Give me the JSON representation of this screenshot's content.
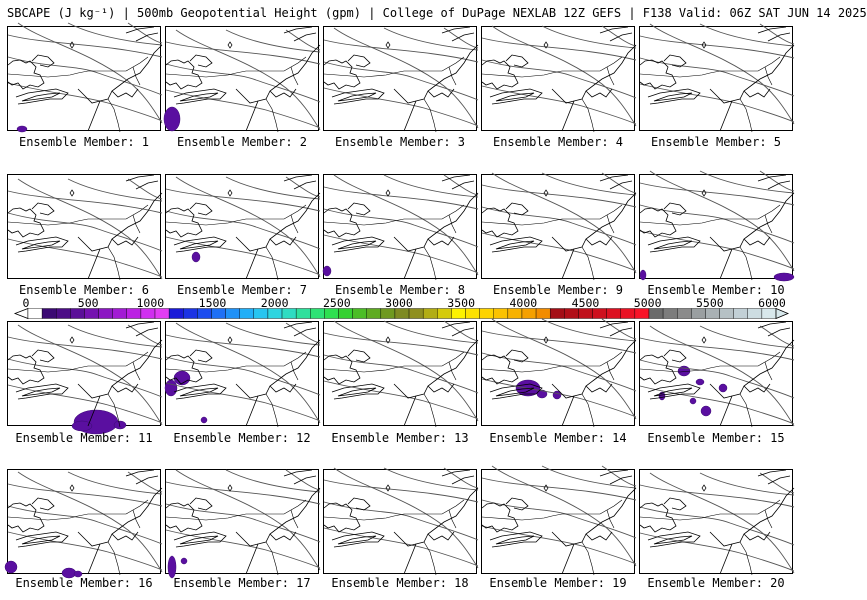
{
  "header": {
    "title": "SBCAPE (J kg⁻¹) | 500mb Geopotential Height (gpm) | College of DuPage NEXLAB 12Z GEFS | F138 Valid: 06Z SAT JUN 14 2025"
  },
  "members": [
    {
      "label": "Ensemble Member: 1",
      "blobs": [
        [
          14,
          102,
          5,
          3
        ]
      ]
    },
    {
      "label": "Ensemble Member: 2",
      "blobs": [
        [
          6,
          92,
          8,
          12
        ]
      ]
    },
    {
      "label": "Ensemble Member: 3",
      "blobs": []
    },
    {
      "label": "Ensemble Member: 4",
      "blobs": []
    },
    {
      "label": "Ensemble Member: 5",
      "blobs": []
    },
    {
      "label": "Ensemble Member: 6",
      "blobs": []
    },
    {
      "label": "Ensemble Member: 7",
      "blobs": [
        [
          30,
          82,
          4,
          5
        ]
      ]
    },
    {
      "label": "Ensemble Member: 8",
      "blobs": [
        [
          3,
          96,
          4,
          5
        ]
      ]
    },
    {
      "label": "Ensemble Member: 9",
      "blobs": []
    },
    {
      "label": "Ensemble Member: 10",
      "blobs": [
        [
          3,
          100,
          3,
          5
        ],
        [
          144,
          102,
          10,
          4
        ]
      ]
    },
    {
      "label": "Ensemble Member: 11",
      "blobs": [
        [
          88,
          100,
          22,
          12
        ],
        [
          74,
          104,
          10,
          5
        ],
        [
          112,
          103,
          6,
          4
        ]
      ]
    },
    {
      "label": "Ensemble Member: 12",
      "blobs": [
        [
          16,
          56,
          8,
          7
        ],
        [
          5,
          66,
          6,
          8
        ],
        [
          38,
          98,
          3,
          3
        ]
      ]
    },
    {
      "label": "Ensemble Member: 13",
      "blobs": []
    },
    {
      "label": "Ensemble Member: 14",
      "blobs": [
        [
          46,
          66,
          12,
          8
        ],
        [
          60,
          72,
          5,
          4
        ],
        [
          75,
          73,
          4,
          4
        ]
      ]
    },
    {
      "label": "Ensemble Member: 15",
      "blobs": [
        [
          44,
          49,
          6,
          5
        ],
        [
          22,
          74,
          3,
          4
        ],
        [
          60,
          60,
          4,
          3
        ],
        [
          83,
          66,
          4,
          4
        ],
        [
          66,
          89,
          5,
          5
        ],
        [
          53,
          79,
          3,
          3
        ]
      ]
    },
    {
      "label": "Ensemble Member: 16",
      "blobs": [
        [
          3,
          97,
          6,
          6
        ],
        [
          61,
          103,
          7,
          5
        ],
        [
          70,
          104,
          4,
          3
        ]
      ]
    },
    {
      "label": "Ensemble Member: 17",
      "blobs": [
        [
          6,
          97,
          4,
          11
        ],
        [
          18,
          91,
          3,
          3
        ]
      ]
    },
    {
      "label": "Ensemble Member: 18",
      "blobs": []
    },
    {
      "label": "Ensemble Member: 19",
      "blobs": []
    },
    {
      "label": "Ensemble Member: 20",
      "blobs": []
    }
  ],
  "colorbar": {
    "ticks": [
      "0",
      "500",
      "1000",
      "1500",
      "2000",
      "2500",
      "3000",
      "3500",
      "4000",
      "4500",
      "5000",
      "5500",
      "6000"
    ],
    "colors": [
      "#3b0a73",
      "#4c0d86",
      "#5b0f98",
      "#7512b0",
      "#8c17c3",
      "#a21bd4",
      "#bb22e3",
      "#d02ff0",
      "#e23df4",
      "#1a1ad8",
      "#1b33e4",
      "#1c4cef",
      "#1e70f5",
      "#1f91f7",
      "#22aff7",
      "#27c5f0",
      "#2ed5e0",
      "#2fdcc2",
      "#2fe09c",
      "#2ee275",
      "#2ee050",
      "#35d132",
      "#4bbd26",
      "#5fab22",
      "#6f9920",
      "#7e8a22",
      "#8f8f20",
      "#b2ad15",
      "#d5cb0b",
      "#fdf200",
      "#fde200",
      "#fdd300",
      "#fbc200",
      "#f8b200",
      "#f5a000",
      "#f28c00",
      "#a40e16",
      "#b10f18",
      "#c0101b",
      "#ce101e",
      "#dc1021",
      "#ea1224",
      "#f81428",
      "#6b6b6b",
      "#7c7c7c",
      "#8b8b8b",
      "#9a9fa1",
      "#a9b1b4",
      "#b6c1c5",
      "#c2d0d6",
      "#cddde2",
      "#d8e8ec"
    ]
  }
}
